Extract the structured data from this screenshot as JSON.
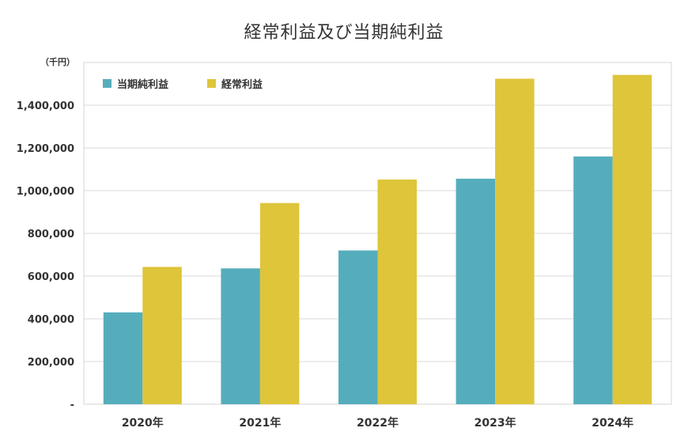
{
  "chart_data": {
    "type": "bar",
    "title": "経常利益及び当期純利益",
    "unit_label": "（千円）",
    "xlabel": "",
    "ylabel": "",
    "categories": [
      "2020年",
      "2021年",
      "2022年",
      "2023年",
      "2024年"
    ],
    "series": [
      {
        "name": "当期純利益",
        "color": "#55adbc",
        "values": [
          430000,
          636000,
          720000,
          1056000,
          1160000
        ]
      },
      {
        "name": "経常利益",
        "color": "#dec53a",
        "values": [
          643000,
          942000,
          1052000,
          1524000,
          1542000
        ]
      }
    ],
    "ylim": [
      0,
      1600000
    ],
    "yticks": [
      0,
      200000,
      400000,
      600000,
      800000,
      1000000,
      1200000,
      1400000
    ],
    "ytick_labels": [
      "-",
      "200,000",
      "400,000",
      "600,000",
      "800,000",
      "1,000,000",
      "1,200,000",
      "1,400,000"
    ],
    "grid": true,
    "legend_position": "top-left"
  }
}
